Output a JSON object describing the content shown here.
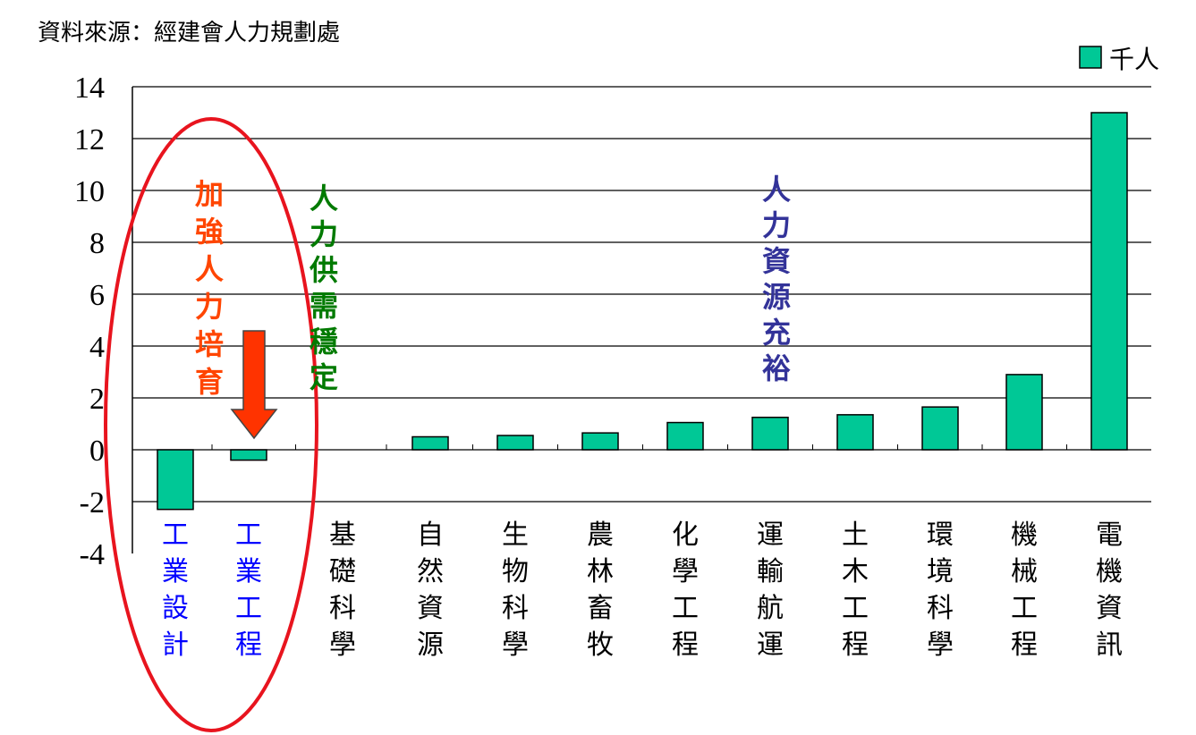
{
  "source": "資料來源：經建會人力規劃處",
  "legend": {
    "label": "千人",
    "swatch": "#00c896"
  },
  "chart_data": {
    "type": "bar",
    "ylim": [
      -4,
      14
    ],
    "yticks": [
      "14",
      "12",
      "10",
      "8",
      "6",
      "4",
      "2",
      "0",
      "-2",
      "-4"
    ],
    "categories": [
      "工業設計",
      "工業工程",
      "基礎科學",
      "自然資源",
      "生物科學",
      "農林畜牧",
      "化學工程",
      "運輸航運",
      "土木工程",
      "環境科學",
      "機械工程",
      "電機資訊"
    ],
    "series": [
      {
        "name": "千人",
        "values": [
          -2.3,
          -0.4,
          0,
          0.5,
          0.55,
          0.65,
          1.05,
          1.25,
          1.35,
          1.65,
          2.9,
          13.0
        ]
      }
    ],
    "highlight_categories": [
      "工業設計",
      "工業工程"
    ],
    "grid": true
  },
  "annotations": {
    "strengthen": "加強人力培育",
    "stable": "人力供需穩定",
    "ample": "人力資源充裕"
  },
  "colors": {
    "bar": "#00c896",
    "highlight_label": "#0000ff",
    "ellipse": "#e8141e",
    "arrow": "#ff3300",
    "strengthen": "#ff4500",
    "stable": "#007a00",
    "ample": "#333399"
  }
}
